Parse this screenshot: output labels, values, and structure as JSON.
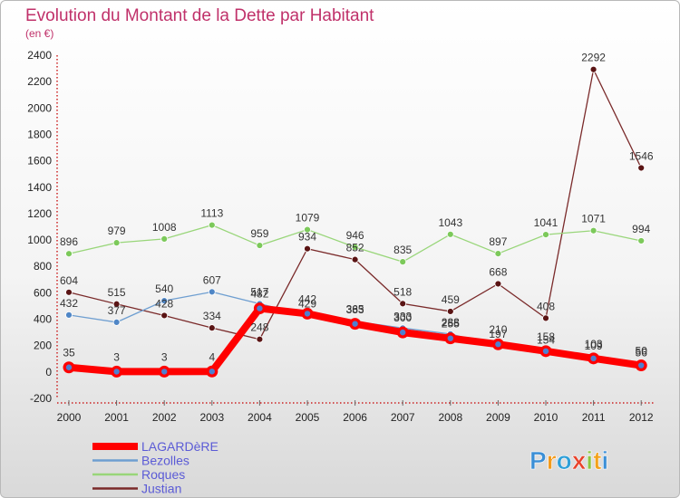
{
  "chart_data": {
    "type": "line",
    "title": "Evolution du Montant de la Dette par Habitant",
    "subtitle": "(en €)",
    "x": [
      "2000",
      "2001",
      "2002",
      "2003",
      "2004",
      "2005",
      "2006",
      "2007",
      "2008",
      "2009",
      "2010",
      "2011",
      "2012"
    ],
    "ylim": [
      -200,
      2400
    ],
    "yticks": [
      -200,
      0,
      200,
      400,
      600,
      800,
      1000,
      1200,
      1400,
      1600,
      1800,
      2000,
      2200,
      2400
    ],
    "grid": false,
    "legend_position": "bottom-left",
    "series": [
      {
        "name": "Justian",
        "color": "#7a2a2a",
        "marker": "#5a1414",
        "width": 1.3,
        "label_dy": -9,
        "values": [
          604,
          515,
          428,
          334,
          248,
          934,
          852,
          518,
          459,
          668,
          408,
          2292,
          1546
        ]
      },
      {
        "name": "Roques",
        "color": "#99d67a",
        "marker": "#7cc95a",
        "width": 1.3,
        "label_dy": -9,
        "values": [
          896,
          979,
          1008,
          1113,
          959,
          1079,
          946,
          835,
          1043,
          897,
          1041,
          1071,
          994
        ]
      },
      {
        "name": "Bezolles",
        "color": "#6f9fd1",
        "marker": "#4f86c6",
        "width": 1.3,
        "label_dy": -9,
        "values": [
          432,
          377,
          540,
          607,
          517,
          429,
          383,
          333,
          288,
          197,
          154,
          109,
          56
        ]
      },
      {
        "name": "LAGARDèRE",
        "color": "#ff0000",
        "marker": "#ff0000",
        "width": 8,
        "label_dy": -12,
        "values": [
          35,
          3,
          3,
          4,
          482,
          442,
          365,
          300,
          255,
          210,
          158,
          103,
          50
        ]
      }
    ]
  },
  "legend_order": [
    "LAGARDèRE",
    "Bezolles",
    "Roques",
    "Justian"
  ],
  "brand": {
    "text": "Proxiti",
    "letters": [
      "P",
      "r",
      "o",
      "x",
      "i",
      "t",
      "i"
    ],
    "colors": [
      "#3b8fd6",
      "#f39a1b",
      "#2e9fd8",
      "#e8432b",
      "#8cc63f",
      "#f3a21b",
      "#3b8fd6"
    ]
  }
}
